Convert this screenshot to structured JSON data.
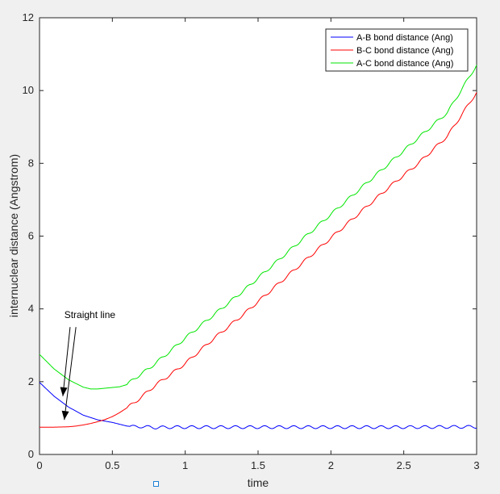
{
  "chart_data": {
    "type": "line",
    "xlabel": "time",
    "ylabel": "internuclear distance (Angstrom)",
    "xlim": [
      0,
      3
    ],
    "ylim": [
      0,
      12
    ],
    "xticks": [
      0,
      0.5,
      1,
      1.5,
      2,
      2.5,
      3
    ],
    "xtick_labels": [
      "0",
      "0.5",
      "1",
      "1.5",
      "2",
      "2.5",
      "3"
    ],
    "yticks": [
      0,
      2,
      4,
      6,
      8,
      10,
      12
    ],
    "ytick_labels": [
      "0",
      "2",
      "4",
      "6",
      "8",
      "10",
      "12"
    ],
    "grid": false,
    "legend_position": "top-right",
    "series": [
      {
        "name": "A-B bond distance (Ang)",
        "color": "#0000ff",
        "x": [
          0,
          0.1,
          0.2,
          0.3,
          0.4,
          0.5,
          0.55,
          0.6,
          0.65,
          0.7,
          0.75,
          0.8,
          0.9,
          1.0,
          1.2,
          1.5,
          2.0,
          2.5,
          3.0
        ],
        "y": [
          1.98,
          1.6,
          1.3,
          1.08,
          0.95,
          0.88,
          0.83,
          0.78,
          0.76,
          0.77,
          0.75,
          0.74,
          0.75,
          0.75,
          0.75,
          0.75,
          0.75,
          0.75,
          0.76
        ],
        "oscillation": {
          "start_x": 0.62,
          "amplitude": 0.04,
          "period": 0.1
        }
      },
      {
        "name": "B-C bond distance (Ang)",
        "color": "#ff0000",
        "x": [
          0,
          0.1,
          0.2,
          0.25,
          0.3,
          0.35,
          0.4,
          0.45,
          0.5,
          0.55,
          0.6,
          0.65,
          0.7,
          0.75,
          0.8,
          0.9,
          1.0,
          1.2,
          1.4,
          1.6,
          1.8,
          2.0,
          2.2,
          2.4,
          2.6,
          2.8,
          3.0
        ],
        "y": [
          0.75,
          0.75,
          0.76,
          0.78,
          0.81,
          0.85,
          0.9,
          0.96,
          1.04,
          1.15,
          1.28,
          1.42,
          1.58,
          1.75,
          1.92,
          2.2,
          2.5,
          3.2,
          3.85,
          4.55,
          5.25,
          5.95,
          6.65,
          7.35,
          8.0,
          8.75,
          9.95
        ],
        "oscillation": {
          "start_x": 0.6,
          "amplitude": 0.04,
          "period": 0.1
        }
      },
      {
        "name": "A-C bond distance (Ang)",
        "color": "#00e600",
        "x": [
          0,
          0.1,
          0.2,
          0.3,
          0.35,
          0.4,
          0.5,
          0.55,
          0.6,
          0.65,
          0.7,
          0.75,
          0.8,
          0.9,
          1.0,
          1.2,
          1.4,
          1.6,
          1.8,
          2.0,
          2.2,
          2.4,
          2.6,
          2.8,
          3.0
        ],
        "y": [
          2.75,
          2.35,
          2.05,
          1.85,
          1.8,
          1.8,
          1.84,
          1.86,
          1.92,
          2.08,
          2.22,
          2.36,
          2.52,
          2.85,
          3.2,
          3.85,
          4.5,
          5.2,
          5.9,
          6.6,
          7.3,
          8.0,
          8.7,
          9.4,
          10.7
        ],
        "oscillation": {
          "start_x": 0.6,
          "amplitude": 0.04,
          "period": 0.1
        }
      }
    ],
    "annotations": [
      {
        "text": "Straight line",
        "text_x": 0.17,
        "text_y": 3.75,
        "arrows": [
          {
            "from": [
              0.21,
              3.5
            ],
            "to": [
              0.16,
              1.6
            ]
          },
          {
            "from": [
              0.25,
              3.5
            ],
            "to": [
              0.17,
              0.95
            ]
          }
        ]
      }
    ]
  }
}
